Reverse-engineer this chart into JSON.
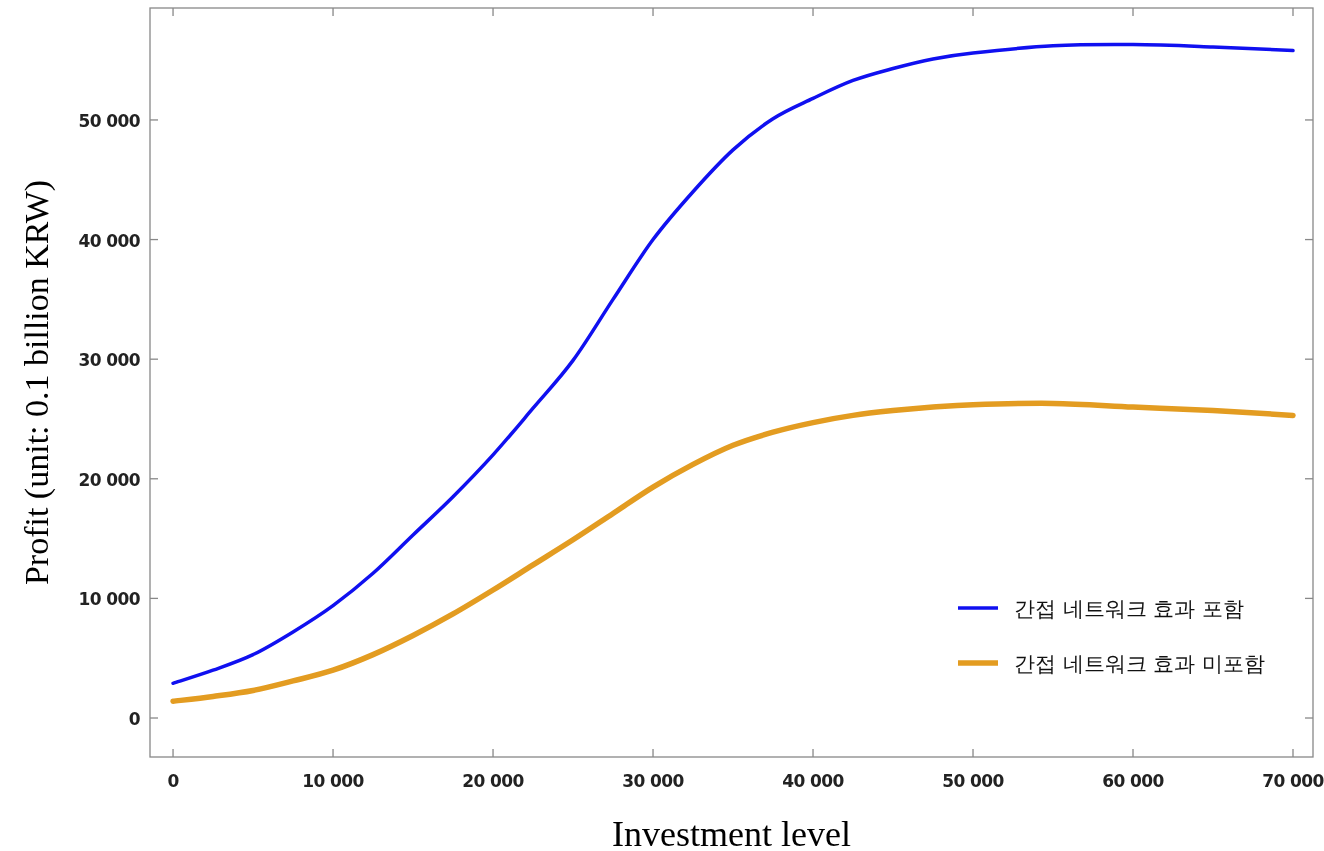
{
  "chart_data": {
    "type": "line",
    "xlabel": "Investment level",
    "ylabel": "Profit (unit: 0.1 billion KRW)",
    "x": [
      0,
      2500,
      5000,
      7500,
      10000,
      12500,
      15000,
      17500,
      20000,
      22500,
      25000,
      27500,
      30000,
      32500,
      35000,
      37500,
      40000,
      42500,
      45000,
      47500,
      50000,
      55000,
      60000,
      65000,
      70000
    ],
    "series": [
      {
        "name": "간접 네트워크 효과 포함",
        "color": "#1010f0",
        "values": [
          2900,
          4000,
          5300,
          7200,
          9400,
          12100,
          15300,
          18500,
          22000,
          25900,
          29900,
          35000,
          40000,
          44000,
          47500,
          50100,
          51800,
          53300,
          54300,
          55100,
          55600,
          56200,
          56300,
          56100,
          55800
        ]
      },
      {
        "name": "간접 네트워크 효과 미포함",
        "color": "#e39c21",
        "values": [
          1400,
          1800,
          2300,
          3100,
          4000,
          5300,
          6900,
          8700,
          10700,
          12800,
          14900,
          17100,
          19300,
          21200,
          22800,
          23900,
          24700,
          25300,
          25700,
          26000,
          26200,
          26300,
          26000,
          25700,
          25300
        ]
      }
    ],
    "xlim": [
      -1440,
      71250
    ],
    "ylim": [
      -3260,
      59360
    ],
    "xticks": [
      {
        "value": 0,
        "label": "0"
      },
      {
        "value": 10000,
        "label": "10 000"
      },
      {
        "value": 20000,
        "label": "20 000"
      },
      {
        "value": 30000,
        "label": "30 000"
      },
      {
        "value": 40000,
        "label": "40 000"
      },
      {
        "value": 50000,
        "label": "50 000"
      },
      {
        "value": 60000,
        "label": "60 000"
      },
      {
        "value": 70000,
        "label": "70 000"
      }
    ],
    "yticks": [
      {
        "value": 0,
        "label": "0"
      },
      {
        "value": 10000,
        "label": "10 000"
      },
      {
        "value": 20000,
        "label": "20 000"
      },
      {
        "value": 30000,
        "label": "30 000"
      },
      {
        "value": 40000,
        "label": "40 000"
      },
      {
        "value": 50000,
        "label": "50 000"
      }
    ],
    "legend": "bottom right",
    "grid": false,
    "marker": "none",
    "line_style": "solid"
  }
}
